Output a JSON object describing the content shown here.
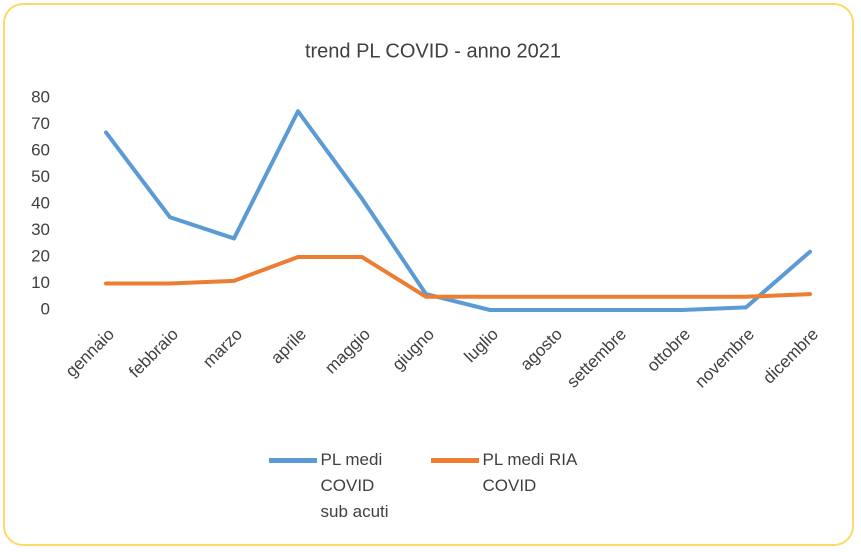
{
  "chart_data": {
    "type": "line",
    "title": "trend PL COVID - anno 2021",
    "categories": [
      "gennaio",
      "febbraio",
      "marzo",
      "aprile",
      "maggio",
      "giugno",
      "luglio",
      "agosto",
      "settembre",
      "ottobre",
      "novembre",
      "dicembre"
    ],
    "series": [
      {
        "name": "PL medi COVID sub acuti",
        "color": "#5b9bd5",
        "values": [
          67,
          35,
          27,
          75,
          42,
          6,
          0,
          0,
          0,
          0,
          1,
          22
        ]
      },
      {
        "name": "PL medi RIA COVID",
        "color": "#ed7d31",
        "values": [
          10,
          10,
          11,
          20,
          20,
          5,
          5,
          5,
          5,
          5,
          5,
          6
        ]
      }
    ],
    "ylim": [
      0,
      80
    ],
    "yticks": [
      0,
      10,
      20,
      30,
      40,
      50,
      60,
      70,
      80
    ],
    "grid": false,
    "legend": "bottom"
  }
}
